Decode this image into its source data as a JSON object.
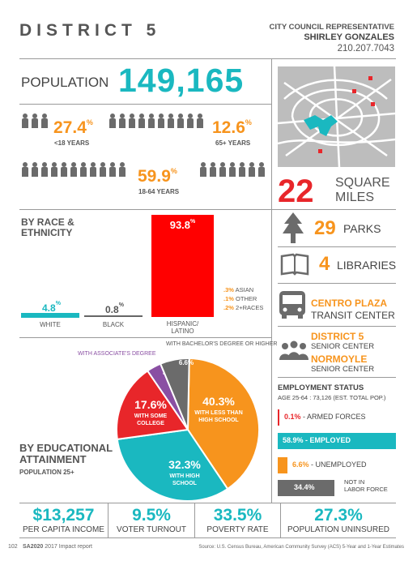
{
  "header": {
    "title": "DISTRICT 5",
    "rep_label": "CITY COUNCIL REPRESENTATIVE",
    "rep_name": "SHIRLEY GONZALES",
    "rep_phone": "210.207.7043"
  },
  "population": {
    "label": "POPULATION",
    "value": "149,165",
    "under18": {
      "pct": "27.4",
      "label": "<18 YEARS"
    },
    "over65": {
      "pct": "12.6",
      "label": "65+ YEARS"
    },
    "adults": {
      "pct": "59.9",
      "label": "18-64 YEARS"
    },
    "pct_sign": "%"
  },
  "area": {
    "value": "22",
    "label_line1": "SQUARE",
    "label_line2": "MILES"
  },
  "race": {
    "title_line1": "BY RACE &",
    "title_line2": "ETHNICITY",
    "white": {
      "value": "4.8",
      "label": "WHITE"
    },
    "black": {
      "value": "0.8",
      "label": "BLACK"
    },
    "hispanic": {
      "value": "93.8",
      "label_line1": "HISPANIC/",
      "label_line2": "LATINO"
    },
    "others": [
      {
        "value": ".3%",
        "label": "ASIAN"
      },
      {
        "value": ".1%",
        "label": "OTHER"
      },
      {
        "value": ".2%",
        "label": "2+RACES"
      }
    ],
    "pct_sign": "%"
  },
  "facilities": {
    "parks": {
      "value": "29",
      "label": "PARKS"
    },
    "libraries": {
      "value": "4",
      "label": "LIBRARIES"
    },
    "transit": {
      "name": "CENTRO PLAZA",
      "label": "TRANSIT CENTER"
    },
    "senior1": {
      "name": "DISTRICT 5",
      "label": "SENIOR CENTER"
    },
    "senior2": {
      "name": "NORMOYLE",
      "label": "SENIOR CENTER"
    }
  },
  "education": {
    "title_line1": "BY EDUCATIONAL",
    "title_line2": "ATTAINMENT",
    "subtitle": "POPULATION 25+",
    "callout_associates": "WITH ASSOCIATE'S DEGREE",
    "callout_bachelors": "WITH BACHELOR'S DEGREE OR HIGHER"
  },
  "chart_data": {
    "type": "pie",
    "slices": [
      {
        "label_line1": "WITH LESS THAN",
        "label_line2": "HIGH SCHOOL",
        "value": 40.3,
        "display": "40.3",
        "color": "#f7941d"
      },
      {
        "label_line1": "WITH HIGH",
        "label_line2": "SCHOOL",
        "value": 32.3,
        "display": "32.3",
        "color": "#1ab8c0"
      },
      {
        "label_line1": "WITH SOME",
        "label_line2": "COLLEGE",
        "value": 17.6,
        "display": "17.6",
        "color": "#e8262a"
      },
      {
        "label_line1": "",
        "label_line2": "",
        "value": 3.3,
        "display": "3.3",
        "color": "#8a4fa3"
      },
      {
        "label_line1": "",
        "label_line2": "",
        "value": 6.6,
        "display": "6.6",
        "color": "#6b6b6b"
      }
    ]
  },
  "employment": {
    "title": "EMPLOYMENT STATUS",
    "subtitle": "AGE 25-64 : 73,126 (EST. TOTAL POP.)",
    "rows": [
      {
        "value": "0.1",
        "label": "- ARMED FORCES",
        "color": "#e8262a",
        "fill": 0.001
      },
      {
        "value": "58.9",
        "label": "- EMPLOYED",
        "color": "#1ab8c0",
        "fill": 0.589
      },
      {
        "value": "6.6",
        "label": "- UNEMPLOYED",
        "color": "#f7941d",
        "fill": 0.066
      },
      {
        "value": "34.4",
        "label_line1": "NOT IN",
        "label_line2": "LABOR FORCE",
        "color": "#6b6b6b",
        "fill": 0.344
      }
    ],
    "pct_sign": "%"
  },
  "bottom_stats": [
    {
      "value": "$13,257",
      "label": "PER CAPITA INCOME"
    },
    {
      "value": "9.5%",
      "label": "VOTER TURNOUT"
    },
    {
      "value": "33.5%",
      "label": "POVERTY RATE"
    },
    {
      "value": "27.3%",
      "label": "POPULATION UNINSURED"
    }
  ],
  "footer": {
    "page": "102",
    "brand": "SA2020",
    "report": "2017 Impact report",
    "source": "Source: U.S. Census Bureau, American Community Survey (ACS) 5-Year and 1-Year Estimates"
  }
}
